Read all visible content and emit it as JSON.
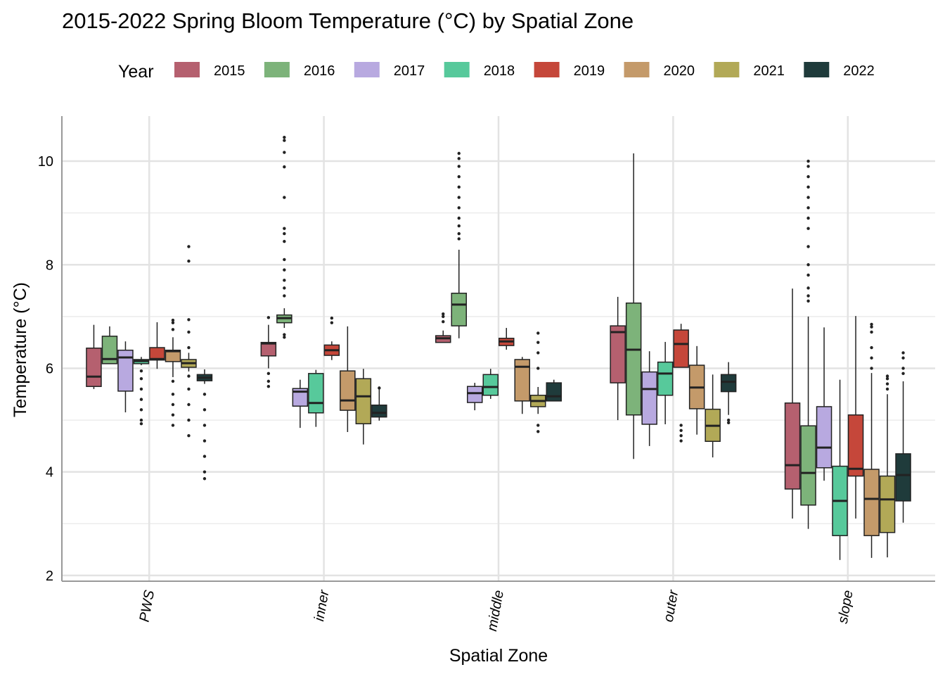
{
  "chart_data": {
    "type": "box",
    "title": "2015-2022 Spring Bloom Temperature (°C) by Spatial Zone",
    "legend_title": "Year",
    "x_label": "Spatial Zone",
    "y_label": "Temperature (°C)",
    "categories": [
      "PWS",
      "inner",
      "middle",
      "outer",
      "slope"
    ],
    "ylim": [
      1.89,
      10.87
    ],
    "yticks": [
      2,
      4,
      6,
      8,
      10
    ],
    "minor_yticks": [
      3,
      5,
      7,
      9
    ],
    "grid": true,
    "legend_position": "top",
    "series": [
      {
        "name": "2015",
        "color": "#b5606f",
        "values": [
          {
            "low": 5.6,
            "q1": 5.65,
            "median": 5.84,
            "q3": 6.39,
            "high": 6.84,
            "outliers": []
          },
          {
            "low": 6.0,
            "q1": 6.24,
            "median": 6.48,
            "q3": 6.5,
            "high": 6.84,
            "outliers": [
              6.98,
              5.9,
              5.75,
              5.65
            ]
          },
          {
            "low": 6.5,
            "q1": 6.5,
            "median": 6.58,
            "q3": 6.63,
            "high": 6.73,
            "outliers": [
              7.05,
              7.0,
              6.9
            ]
          },
          {
            "low": 5.0,
            "q1": 5.72,
            "median": 6.7,
            "q3": 6.82,
            "high": 7.38,
            "outliers": []
          },
          {
            "low": 3.1,
            "q1": 3.67,
            "median": 4.13,
            "q3": 5.33,
            "high": 7.54,
            "outliers": []
          }
        ]
      },
      {
        "name": "2016",
        "color": "#7db37a",
        "values": [
          {
            "low": 6.09,
            "q1": 6.09,
            "median": 6.18,
            "q3": 6.62,
            "high": 6.81,
            "outliers": []
          },
          {
            "low": 6.78,
            "q1": 6.88,
            "median": 6.97,
            "q3": 7.03,
            "high": 7.16,
            "outliers": [
              10.46,
              10.4,
              10.17,
              9.89,
              9.3,
              8.7,
              8.6,
              8.45,
              8.1,
              7.9,
              7.7,
              7.55,
              7.4,
              6.65,
              6.6
            ]
          },
          {
            "low": 6.58,
            "q1": 6.82,
            "median": 7.23,
            "q3": 7.45,
            "high": 8.29,
            "outliers": [
              10.15,
              10.05,
              9.9,
              9.7,
              9.5,
              9.3,
              9.1,
              8.9,
              8.75,
              8.6,
              8.5
            ]
          },
          {
            "low": 4.25,
            "q1": 5.1,
            "median": 6.36,
            "q3": 7.26,
            "high": 10.15,
            "outliers": []
          },
          {
            "low": 2.9,
            "q1": 3.36,
            "median": 3.98,
            "q3": 4.89,
            "high": 7.0,
            "outliers": [
              10.0,
              9.9,
              9.7,
              9.5,
              9.3,
              9.1,
              8.9,
              8.7,
              8.35,
              8.0,
              7.8,
              7.55,
              7.4,
              7.3
            ]
          }
        ]
      },
      {
        "name": "2017",
        "color": "#b8a9e0",
        "values": [
          {
            "low": 5.15,
            "q1": 5.56,
            "median": 6.21,
            "q3": 6.35,
            "high": 6.52,
            "outliers": []
          },
          {
            "low": 4.85,
            "q1": 5.27,
            "median": 5.55,
            "q3": 5.61,
            "high": 5.78,
            "outliers": []
          },
          {
            "low": 5.19,
            "q1": 5.34,
            "median": 5.52,
            "q3": 5.65,
            "high": 5.72,
            "outliers": []
          },
          {
            "low": 4.5,
            "q1": 4.92,
            "median": 5.6,
            "q3": 5.93,
            "high": 6.33,
            "outliers": []
          },
          {
            "low": 3.83,
            "q1": 4.08,
            "median": 4.47,
            "q3": 5.26,
            "high": 6.79,
            "outliers": []
          }
        ]
      },
      {
        "name": "2018",
        "color": "#57c99b",
        "values": [
          {
            "low": 6.06,
            "q1": 6.09,
            "median": 6.14,
            "q3": 6.17,
            "high": 6.22,
            "outliers": [
              5.95,
              5.8,
              5.6,
              5.4,
              5.2,
              5.0,
              4.93
            ]
          },
          {
            "low": 4.87,
            "q1": 5.14,
            "median": 5.33,
            "q3": 5.9,
            "high": 5.97,
            "outliers": []
          },
          {
            "low": 5.41,
            "q1": 5.48,
            "median": 5.64,
            "q3": 5.88,
            "high": 5.99,
            "outliers": []
          },
          {
            "low": 4.92,
            "q1": 5.48,
            "median": 5.9,
            "q3": 6.12,
            "high": 6.51,
            "outliers": []
          },
          {
            "low": 2.3,
            "q1": 2.77,
            "median": 3.44,
            "q3": 4.11,
            "high": 5.78,
            "outliers": []
          }
        ]
      },
      {
        "name": "2019",
        "color": "#c5473a",
        "values": [
          {
            "low": 5.99,
            "q1": 6.16,
            "median": 6.18,
            "q3": 6.4,
            "high": 6.89,
            "outliers": []
          },
          {
            "low": 6.16,
            "q1": 6.25,
            "median": 6.35,
            "q3": 6.45,
            "high": 6.52,
            "outliers": [
              6.97,
              6.88
            ]
          },
          {
            "low": 6.36,
            "q1": 6.44,
            "median": 6.52,
            "q3": 6.58,
            "high": 6.78,
            "outliers": []
          },
          {
            "low": 6.02,
            "q1": 6.02,
            "median": 6.47,
            "q3": 6.74,
            "high": 6.86,
            "outliers": [
              4.9,
              4.8,
              4.7,
              4.6
            ]
          },
          {
            "low": 3.1,
            "q1": 3.92,
            "median": 4.06,
            "q3": 5.1,
            "high": 7.01,
            "outliers": []
          }
        ]
      },
      {
        "name": "2020",
        "color": "#c49a6a",
        "values": [
          {
            "low": 5.83,
            "q1": 6.13,
            "median": 6.33,
            "q3": 6.35,
            "high": 6.6,
            "outliers": [
              6.93,
              6.88,
              6.75,
              5.75,
              5.5,
              5.3,
              5.1,
              4.9
            ]
          },
          {
            "low": 4.77,
            "q1": 5.19,
            "median": 5.38,
            "q3": 5.95,
            "high": 6.81,
            "outliers": []
          },
          {
            "low": 5.12,
            "q1": 5.37,
            "median": 6.03,
            "q3": 6.17,
            "high": 6.22,
            "outliers": []
          },
          {
            "low": 4.72,
            "q1": 5.22,
            "median": 5.63,
            "q3": 6.06,
            "high": 6.43,
            "outliers": []
          },
          {
            "low": 2.34,
            "q1": 2.77,
            "median": 3.48,
            "q3": 4.05,
            "high": 5.91,
            "outliers": [
              6.85,
              6.8,
              6.7,
              6.4,
              6.2,
              6.0
            ]
          }
        ]
      },
      {
        "name": "2021",
        "color": "#b2a957",
        "values": [
          {
            "low": 5.94,
            "q1": 6.02,
            "median": 6.1,
            "q3": 6.17,
            "high": 6.3,
            "outliers": [
              8.35,
              8.07,
              6.94,
              6.7,
              6.4,
              5.85,
              5.6,
              5.3,
              5.0,
              4.7
            ]
          },
          {
            "low": 4.53,
            "q1": 4.93,
            "median": 5.46,
            "q3": 5.8,
            "high": 5.99,
            "outliers": []
          },
          {
            "low": 5.12,
            "q1": 5.26,
            "median": 5.37,
            "q3": 5.48,
            "high": 5.64,
            "outliers": [
              6.68,
              6.5,
              6.3,
              6.0,
              4.9,
              4.78
            ]
          },
          {
            "low": 4.28,
            "q1": 4.59,
            "median": 4.89,
            "q3": 5.21,
            "high": 5.88,
            "outliers": []
          },
          {
            "low": 2.35,
            "q1": 2.83,
            "median": 3.47,
            "q3": 3.92,
            "high": 5.5,
            "outliers": [
              5.85,
              5.8,
              5.7,
              5.6
            ]
          }
        ]
      },
      {
        "name": "2022",
        "color": "#1f3b3b",
        "values": [
          {
            "low": 5.7,
            "q1": 5.76,
            "median": 5.82,
            "q3": 5.88,
            "high": 5.98,
            "outliers": [
              5.5,
              5.2,
              4.9,
              4.6,
              4.3,
              4.0,
              3.87
            ]
          },
          {
            "low": 4.99,
            "q1": 5.06,
            "median": 5.14,
            "q3": 5.29,
            "high": 5.65,
            "outliers": [
              5.62
            ]
          },
          {
            "low": 5.37,
            "q1": 5.37,
            "median": 5.46,
            "q3": 5.72,
            "high": 5.78,
            "outliers": []
          },
          {
            "low": 5.1,
            "q1": 5.55,
            "median": 5.74,
            "q3": 5.88,
            "high": 6.12,
            "outliers": [
              5.0,
              4.95
            ]
          },
          {
            "low": 3.02,
            "q1": 3.44,
            "median": 3.94,
            "q3": 4.35,
            "high": 5.75,
            "outliers": [
              6.3,
              6.2,
              6.0,
              5.9
            ]
          }
        ]
      }
    ]
  }
}
